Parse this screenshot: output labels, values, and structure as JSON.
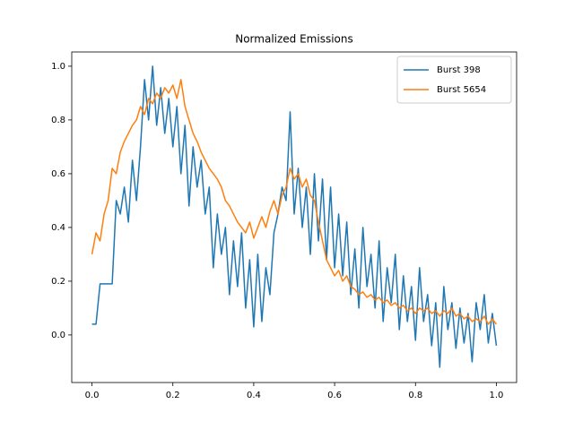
{
  "chart_data": {
    "type": "line",
    "title": "Normalized Emissions",
    "x": [
      0,
      0.01,
      0.02,
      0.03,
      0.04,
      0.05,
      0.06,
      0.07,
      0.08,
      0.09,
      0.1,
      0.11,
      0.12,
      0.13,
      0.14,
      0.15,
      0.16,
      0.17,
      0.18,
      0.19,
      0.2,
      0.21,
      0.22,
      0.23,
      0.24,
      0.25,
      0.26,
      0.27,
      0.28,
      0.29,
      0.3,
      0.31,
      0.32,
      0.33,
      0.34,
      0.35,
      0.36,
      0.37,
      0.38,
      0.39,
      0.4,
      0.41,
      0.42,
      0.43,
      0.44,
      0.45,
      0.46,
      0.47,
      0.48,
      0.49,
      0.5,
      0.51,
      0.52,
      0.53,
      0.54,
      0.55,
      0.56,
      0.57,
      0.58,
      0.59,
      0.6,
      0.61,
      0.62,
      0.63,
      0.64,
      0.65,
      0.66,
      0.67,
      0.68,
      0.69,
      0.7,
      0.71,
      0.72,
      0.73,
      0.74,
      0.75,
      0.76,
      0.77,
      0.78,
      0.79,
      0.8,
      0.81,
      0.82,
      0.83,
      0.84,
      0.85,
      0.86,
      0.87,
      0.88,
      0.89,
      0.9,
      0.91,
      0.92,
      0.93,
      0.94,
      0.95,
      0.96,
      0.97,
      0.98,
      0.99,
      1
    ],
    "series": [
      {
        "name": "Burst 398",
        "color": "#1f77b4",
        "values": [
          0.04,
          0.04,
          0.19,
          0.19,
          0.19,
          0.19,
          0.5,
          0.45,
          0.55,
          0.42,
          0.65,
          0.5,
          0.7,
          0.95,
          0.8,
          1.0,
          0.78,
          0.92,
          0.75,
          0.88,
          0.7,
          0.85,
          0.6,
          0.78,
          0.48,
          0.7,
          0.55,
          0.65,
          0.45,
          0.55,
          0.25,
          0.45,
          0.3,
          0.4,
          0.15,
          0.35,
          0.18,
          0.38,
          0.1,
          0.28,
          0.03,
          0.3,
          0.05,
          0.25,
          0.15,
          0.38,
          0.45,
          0.55,
          0.5,
          0.83,
          0.45,
          0.62,
          0.4,
          0.55,
          0.3,
          0.6,
          0.35,
          0.58,
          0.28,
          0.55,
          0.25,
          0.45,
          0.22,
          0.42,
          0.15,
          0.32,
          0.1,
          0.4,
          0.18,
          0.3,
          0.1,
          0.35,
          0.05,
          0.25,
          0.12,
          0.3,
          0.02,
          0.22,
          0.05,
          0.18,
          -0.02,
          0.25,
          0.05,
          0.15,
          -0.04,
          0.12,
          -0.12,
          0.18,
          0.02,
          0.12,
          -0.05,
          0.1,
          -0.03,
          0.08,
          -0.1,
          0.12,
          0.02,
          0.15,
          -0.03,
          0.08,
          -0.04
        ]
      },
      {
        "name": "Burst 5654",
        "color": "#ff7f0e",
        "values": [
          0.3,
          0.38,
          0.35,
          0.45,
          0.5,
          0.62,
          0.6,
          0.68,
          0.72,
          0.75,
          0.78,
          0.8,
          0.85,
          0.82,
          0.88,
          0.86,
          0.9,
          0.88,
          0.92,
          0.9,
          0.93,
          0.88,
          0.95,
          0.85,
          0.8,
          0.75,
          0.72,
          0.68,
          0.65,
          0.62,
          0.6,
          0.58,
          0.55,
          0.5,
          0.48,
          0.45,
          0.42,
          0.4,
          0.38,
          0.42,
          0.36,
          0.4,
          0.44,
          0.4,
          0.46,
          0.5,
          0.45,
          0.52,
          0.55,
          0.62,
          0.58,
          0.6,
          0.55,
          0.58,
          0.52,
          0.5,
          0.42,
          0.35,
          0.28,
          0.25,
          0.22,
          0.24,
          0.2,
          0.22,
          0.18,
          0.17,
          0.15,
          0.16,
          0.14,
          0.15,
          0.13,
          0.14,
          0.12,
          0.13,
          0.11,
          0.12,
          0.1,
          0.11,
          0.09,
          0.1,
          0.08,
          0.1,
          0.09,
          0.1,
          0.08,
          0.09,
          0.07,
          0.09,
          0.08,
          0.1,
          0.07,
          0.08,
          0.06,
          0.07,
          0.05,
          0.06,
          0.05,
          0.07,
          0.04,
          0.06,
          0.04
        ]
      }
    ],
    "xlim": [
      -0.05,
      1.05
    ],
    "xticks": [
      {
        "value": 0,
        "label": "0.0"
      },
      {
        "value": 0.2,
        "label": "0.2"
      },
      {
        "value": 0.4,
        "label": "0.4"
      },
      {
        "value": 0.6,
        "label": "0.6"
      },
      {
        "value": 0.8,
        "label": "0.8"
      },
      {
        "value": 1,
        "label": "1.0"
      }
    ],
    "ylim": [
      -0.177,
      1.053
    ],
    "yticks": [
      {
        "value": 0,
        "label": "0.0"
      },
      {
        "value": 0.2,
        "label": "0.2"
      },
      {
        "value": 0.4,
        "label": "0.4"
      },
      {
        "value": 0.6,
        "label": "0.6"
      },
      {
        "value": 0.8,
        "label": "0.8"
      },
      {
        "value": 1,
        "label": "1.0"
      }
    ],
    "legend": "upper right",
    "grid": false
  }
}
